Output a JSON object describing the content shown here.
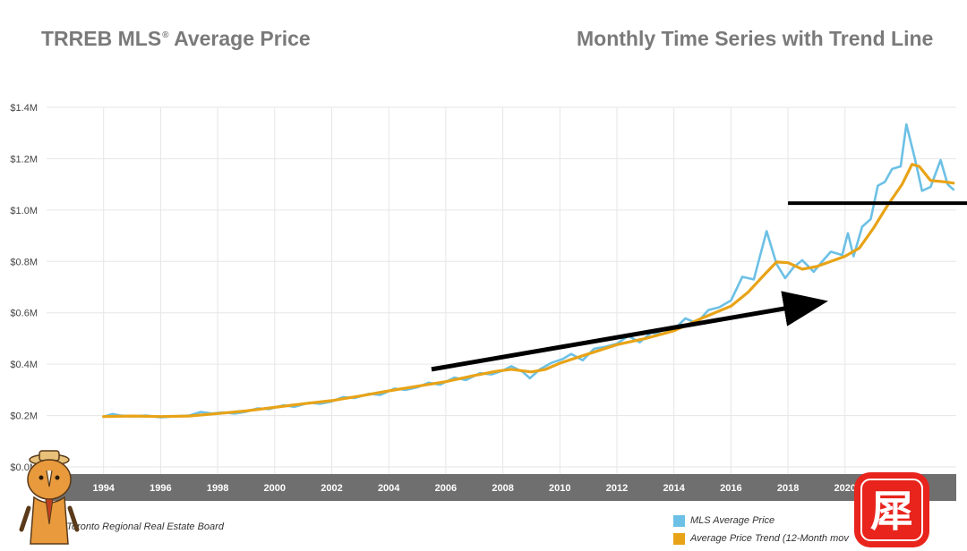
{
  "header": {
    "title_main": "TRREB MLS",
    "title_reg": "®",
    "title_tail": " Average Price",
    "subtitle": "Monthly Time Series with Trend Line"
  },
  "source": "e: Toronto Regional Real Estate Board",
  "stamp_char": "犀",
  "colors": {
    "series_actual": "#6cc0e5",
    "series_trend": "#e8a317",
    "axis_band": "#6f6f6f",
    "annotation": "#000000"
  },
  "chart_data": {
    "type": "line",
    "title": "TRREB MLS® Average Price",
    "subtitle": "Monthly Time Series with Trend Line",
    "xlim": [
      1992.0,
      2023.9
    ],
    "ylim": [
      0,
      1400000
    ],
    "x_ticks": [
      "1994",
      "1996",
      "1998",
      "2000",
      "2002",
      "2004",
      "2006",
      "2008",
      "2010",
      "2012",
      "2014",
      "2016",
      "2018",
      "2020"
    ],
    "y_ticks": [
      {
        "value": 0,
        "label": "$0.0M"
      },
      {
        "value": 200000,
        "label": "$0.2M"
      },
      {
        "value": 400000,
        "label": "$0.4M"
      },
      {
        "value": 600000,
        "label": "$0.6M"
      },
      {
        "value": 800000,
        "label": "$0.8M"
      },
      {
        "value": 1000000,
        "label": "$1.0M"
      },
      {
        "value": 1200000,
        "label": "$1.2M"
      },
      {
        "value": 1400000,
        "label": "$1.4M"
      }
    ],
    "grid": true,
    "legend_position": "bottom-right",
    "series": [
      {
        "name": "MLS Average Price",
        "color": "#6cc0e5",
        "points": [
          [
            1994.0,
            195000
          ],
          [
            1994.3,
            206000
          ],
          [
            1994.6,
            200000
          ],
          [
            1995.0,
            197000
          ],
          [
            1995.5,
            200000
          ],
          [
            1996.0,
            193000
          ],
          [
            1996.5,
            197000
          ],
          [
            1997.0,
            200000
          ],
          [
            1997.4,
            214000
          ],
          [
            1997.8,
            208000
          ],
          [
            1998.2,
            212000
          ],
          [
            1998.6,
            208000
          ],
          [
            1999.0,
            215000
          ],
          [
            1999.4,
            228000
          ],
          [
            1999.8,
            225000
          ],
          [
            2000.3,
            240000
          ],
          [
            2000.7,
            234000
          ],
          [
            2001.2,
            250000
          ],
          [
            2001.6,
            246000
          ],
          [
            2002.0,
            255000
          ],
          [
            2002.4,
            272000
          ],
          [
            2002.8,
            268000
          ],
          [
            2003.3,
            285000
          ],
          [
            2003.7,
            280000
          ],
          [
            2004.2,
            305000
          ],
          [
            2004.6,
            300000
          ],
          [
            2005.0,
            310000
          ],
          [
            2005.4,
            328000
          ],
          [
            2005.8,
            320000
          ],
          [
            2006.3,
            348000
          ],
          [
            2006.7,
            338000
          ],
          [
            2007.2,
            365000
          ],
          [
            2007.6,
            360000
          ],
          [
            2008.0,
            375000
          ],
          [
            2008.3,
            392000
          ],
          [
            2008.7,
            370000
          ],
          [
            2008.95,
            345000
          ],
          [
            2009.3,
            380000
          ],
          [
            2009.7,
            405000
          ],
          [
            2010.1,
            420000
          ],
          [
            2010.4,
            440000
          ],
          [
            2010.8,
            415000
          ],
          [
            2011.2,
            460000
          ],
          [
            2011.6,
            468000
          ],
          [
            2012.0,
            480000
          ],
          [
            2012.4,
            510000
          ],
          [
            2012.8,
            485000
          ],
          [
            2013.2,
            522000
          ],
          [
            2013.6,
            518000
          ],
          [
            2014.0,
            535000
          ],
          [
            2014.4,
            578000
          ],
          [
            2014.8,
            560000
          ],
          [
            2015.2,
            610000
          ],
          [
            2015.6,
            622000
          ],
          [
            2016.0,
            648000
          ],
          [
            2016.4,
            740000
          ],
          [
            2016.8,
            730000
          ],
          [
            2017.25,
            918000
          ],
          [
            2017.6,
            790000
          ],
          [
            2017.9,
            735000
          ],
          [
            2018.2,
            778000
          ],
          [
            2018.5,
            805000
          ],
          [
            2018.9,
            760000
          ],
          [
            2019.2,
            800000
          ],
          [
            2019.5,
            838000
          ],
          [
            2019.9,
            825000
          ],
          [
            2020.1,
            910000
          ],
          [
            2020.3,
            820000
          ],
          [
            2020.6,
            935000
          ],
          [
            2020.9,
            965000
          ],
          [
            2021.15,
            1095000
          ],
          [
            2021.4,
            1110000
          ],
          [
            2021.65,
            1160000
          ],
          [
            2021.95,
            1170000
          ],
          [
            2022.15,
            1334000
          ],
          [
            2022.45,
            1200000
          ],
          [
            2022.7,
            1075000
          ],
          [
            2023.0,
            1090000
          ],
          [
            2023.35,
            1195000
          ],
          [
            2023.6,
            1100000
          ],
          [
            2023.8,
            1080000
          ]
        ]
      },
      {
        "name": "Average Price Trend (12-Month mov",
        "color": "#e8a317",
        "points": [
          [
            1994.0,
            196000
          ],
          [
            1995.0,
            198000
          ],
          [
            1996.0,
            196000
          ],
          [
            1997.0,
            198000
          ],
          [
            1998.0,
            208000
          ],
          [
            1999.0,
            218000
          ],
          [
            2000.0,
            232000
          ],
          [
            2001.0,
            246000
          ],
          [
            2002.0,
            258000
          ],
          [
            2003.0,
            276000
          ],
          [
            2004.0,
            296000
          ],
          [
            2005.0,
            314000
          ],
          [
            2006.0,
            332000
          ],
          [
            2007.0,
            356000
          ],
          [
            2007.8,
            373000
          ],
          [
            2008.3,
            380000
          ],
          [
            2009.0,
            370000
          ],
          [
            2009.5,
            380000
          ],
          [
            2010.0,
            404000
          ],
          [
            2011.0,
            440000
          ],
          [
            2012.0,
            476000
          ],
          [
            2013.0,
            500000
          ],
          [
            2014.0,
            530000
          ],
          [
            2015.0,
            580000
          ],
          [
            2016.0,
            626000
          ],
          [
            2016.6,
            680000
          ],
          [
            2017.2,
            752000
          ],
          [
            2017.6,
            798000
          ],
          [
            2018.0,
            795000
          ],
          [
            2018.5,
            770000
          ],
          [
            2019.0,
            780000
          ],
          [
            2019.5,
            800000
          ],
          [
            2020.0,
            820000
          ],
          [
            2020.5,
            852000
          ],
          [
            2021.0,
            930000
          ],
          [
            2021.5,
            1020000
          ],
          [
            2022.0,
            1100000
          ],
          [
            2022.35,
            1178000
          ],
          [
            2022.6,
            1170000
          ],
          [
            2023.0,
            1115000
          ],
          [
            2023.5,
            1110000
          ],
          [
            2023.8,
            1105000
          ]
        ]
      }
    ],
    "annotations": [
      {
        "type": "arrow",
        "from": [
          2005.5,
          380000
        ],
        "to": [
          2019.1,
          640000
        ]
      },
      {
        "type": "hline",
        "y": 1027000,
        "x_start": 2018.0
      }
    ]
  },
  "legend": {
    "items": [
      {
        "label": "MLS Average Price",
        "color": "#6cc0e5"
      },
      {
        "label": "Average Price Trend (12-Month mov",
        "color": "#e8a317"
      }
    ]
  }
}
